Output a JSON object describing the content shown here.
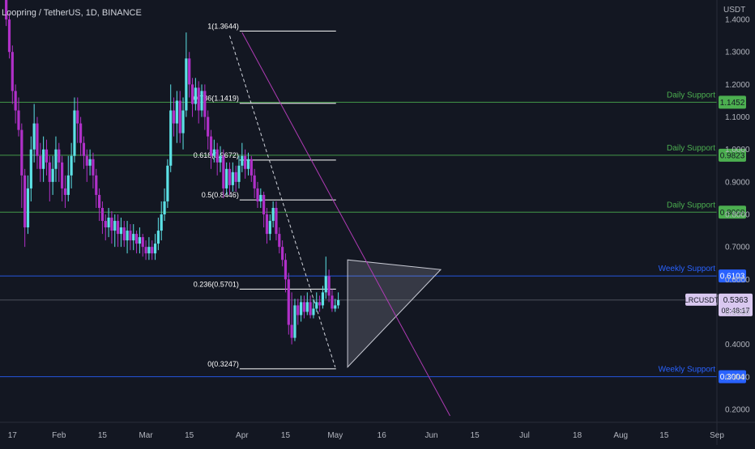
{
  "header": {
    "title": "Loopring / TetherUS, 1D, BINANCE"
  },
  "colors": {
    "background": "#131722",
    "bull": "#5ce1e6",
    "bear": "#b030c8",
    "daily_support": "#4caf50",
    "weekly_support": "#2962ff",
    "text": "#b2b5be",
    "fib": "#ffffff",
    "trendline": "#b03bb5"
  },
  "chart_data": {
    "type": "candlestick",
    "title": "Loopring / TetherUS, 1D, BINANCE",
    "symbol": "LRCUSDT",
    "price_axis_unit": "USDT",
    "y_ticks": [
      "0.2000",
      "0.3000",
      "0.4000",
      "0.5000",
      "0.6000",
      "0.7000",
      "0.8000",
      "0.9000",
      "1.0000",
      "1.1000",
      "1.2000",
      "1.3000",
      "1.4000"
    ],
    "ylim": [
      0.16,
      1.46
    ],
    "x_labels": [
      {
        "label": "17",
        "day": -45
      },
      {
        "label": "Feb",
        "day": -30
      },
      {
        "label": "15",
        "day": -16
      },
      {
        "label": "Mar",
        "day": -2
      },
      {
        "label": "15",
        "day": 12
      },
      {
        "label": "Apr",
        "day": 29
      },
      {
        "label": "15",
        "day": 43
      },
      {
        "label": "May",
        "day": 59
      },
      {
        "label": "16",
        "day": 74
      },
      {
        "label": "Jun",
        "day": 90
      },
      {
        "label": "15",
        "day": 104
      },
      {
        "label": "Jul",
        "day": 120
      },
      {
        "label": "18",
        "day": 137
      },
      {
        "label": "Aug",
        "day": 151
      },
      {
        "label": "15",
        "day": 165
      },
      {
        "label": "Sep",
        "day": 182
      }
    ],
    "xlim": [
      -49,
      182
    ],
    "candles": [
      [
        1.46,
        1.4,
        1.48,
        1.38
      ],
      [
        1.4,
        1.3,
        1.42,
        1.28
      ],
      [
        1.3,
        1.18,
        1.32,
        1.14
      ],
      [
        1.18,
        1.12,
        1.2,
        1.08
      ],
      [
        1.12,
        1.06,
        1.16,
        1.04
      ],
      [
        1.06,
        0.92,
        1.08,
        0.82
      ],
      [
        0.92,
        0.76,
        0.94,
        0.7
      ],
      [
        0.76,
        0.88,
        0.92,
        0.74
      ],
      [
        0.88,
        1.0,
        1.04,
        0.84
      ],
      [
        1.0,
        1.08,
        1.14,
        0.96
      ],
      [
        1.08,
        0.98,
        1.1,
        0.94
      ],
      [
        0.98,
        0.94,
        1.02,
        0.9
      ],
      [
        0.94,
        1.0,
        1.04,
        0.9
      ],
      [
        1.0,
        0.96,
        1.03,
        0.92
      ],
      [
        0.96,
        0.9,
        0.98,
        0.84
      ],
      [
        0.9,
        0.94,
        0.98,
        0.86
      ],
      [
        0.94,
        1.0,
        1.04,
        0.9
      ],
      [
        1.0,
        0.96,
        1.02,
        0.9
      ],
      [
        0.96,
        0.88,
        0.98,
        0.84
      ],
      [
        0.88,
        0.86,
        0.92,
        0.82
      ],
      [
        0.86,
        0.92,
        0.98,
        0.84
      ],
      [
        0.92,
        0.98,
        1.02,
        0.88
      ],
      [
        0.98,
        1.12,
        1.16,
        0.96
      ],
      [
        1.12,
        1.08,
        1.16,
        1.02
      ],
      [
        1.08,
        1.02,
        1.1,
        0.98
      ],
      [
        1.02,
        0.98,
        1.04,
        0.94
      ],
      [
        0.98,
        0.95,
        1.0,
        0.9
      ],
      [
        0.95,
        0.97,
        1.0,
        0.92
      ],
      [
        0.97,
        0.92,
        0.99,
        0.88
      ],
      [
        0.92,
        0.86,
        0.94,
        0.82
      ],
      [
        0.86,
        0.82,
        0.88,
        0.78
      ],
      [
        0.82,
        0.78,
        0.84,
        0.74
      ],
      [
        0.78,
        0.76,
        0.8,
        0.72
      ],
      [
        0.76,
        0.79,
        0.82,
        0.73
      ],
      [
        0.79,
        0.75,
        0.81,
        0.71
      ],
      [
        0.75,
        0.78,
        0.8,
        0.7
      ],
      [
        0.78,
        0.74,
        0.8,
        0.7
      ],
      [
        0.74,
        0.76,
        0.79,
        0.7
      ],
      [
        0.76,
        0.72,
        0.78,
        0.7
      ],
      [
        0.72,
        0.75,
        0.78,
        0.68
      ],
      [
        0.75,
        0.72,
        0.77,
        0.69
      ],
      [
        0.72,
        0.74,
        0.77,
        0.69
      ],
      [
        0.74,
        0.71,
        0.75,
        0.68
      ],
      [
        0.71,
        0.73,
        0.76,
        0.68
      ],
      [
        0.73,
        0.7,
        0.74,
        0.67
      ],
      [
        0.7,
        0.68,
        0.72,
        0.66
      ],
      [
        0.68,
        0.7,
        0.73,
        0.66
      ],
      [
        0.7,
        0.68,
        0.72,
        0.66
      ],
      [
        0.68,
        0.71,
        0.74,
        0.66
      ],
      [
        0.71,
        0.75,
        0.79,
        0.69
      ],
      [
        0.75,
        0.8,
        0.84,
        0.72
      ],
      [
        0.8,
        0.84,
        0.88,
        0.78
      ],
      [
        0.84,
        0.95,
        0.97,
        0.82
      ],
      [
        0.95,
        1.12,
        1.2,
        0.93
      ],
      [
        1.12,
        1.08,
        1.16,
        1.04
      ],
      [
        1.08,
        1.15,
        1.18,
        1.02
      ],
      [
        1.15,
        1.05,
        1.18,
        1.02
      ],
      [
        1.05,
        1.12,
        1.16,
        1.0
      ],
      [
        1.12,
        1.28,
        1.36,
        1.1
      ],
      [
        1.28,
        1.2,
        1.3,
        1.16
      ],
      [
        1.2,
        1.14,
        1.22,
        1.1
      ],
      [
        1.14,
        1.19,
        1.22,
        1.12
      ],
      [
        1.19,
        1.12,
        1.21,
        1.08
      ],
      [
        1.12,
        1.18,
        1.2,
        1.1
      ],
      [
        1.18,
        1.1,
        1.2,
        1.06
      ],
      [
        1.1,
        1.04,
        1.12,
        1.0
      ],
      [
        1.04,
        0.98,
        1.06,
        0.94
      ],
      [
        0.98,
        1.0,
        1.03,
        0.96
      ],
      [
        1.0,
        0.96,
        1.02,
        0.92
      ],
      [
        0.96,
        0.98,
        1.01,
        0.93
      ],
      [
        0.98,
        0.88,
        1.0,
        0.85
      ],
      [
        0.88,
        0.94,
        0.96,
        0.86
      ],
      [
        0.94,
        0.89,
        0.96,
        0.86
      ],
      [
        0.89,
        0.93,
        0.96,
        0.87
      ],
      [
        0.93,
        0.9,
        0.95,
        0.87
      ],
      [
        0.9,
        0.95,
        0.98,
        0.88
      ],
      [
        0.95,
        0.98,
        1.02,
        0.93
      ],
      [
        0.98,
        0.94,
        1.0,
        0.91
      ],
      [
        0.94,
        0.97,
        0.99,
        0.92
      ],
      [
        0.97,
        0.92,
        0.98,
        0.9
      ],
      [
        0.92,
        0.88,
        0.94,
        0.85
      ],
      [
        0.88,
        0.84,
        0.9,
        0.82
      ],
      [
        0.84,
        0.86,
        0.88,
        0.82
      ],
      [
        0.86,
        0.8,
        0.87,
        0.76
      ],
      [
        0.8,
        0.74,
        0.82,
        0.71
      ],
      [
        0.74,
        0.78,
        0.8,
        0.72
      ],
      [
        0.78,
        0.82,
        0.84,
        0.76
      ],
      [
        0.82,
        0.74,
        0.84,
        0.72
      ],
      [
        0.74,
        0.7,
        0.76,
        0.68
      ],
      [
        0.7,
        0.66,
        0.72,
        0.64
      ],
      [
        0.66,
        0.6,
        0.68,
        0.56
      ],
      [
        0.6,
        0.46,
        0.62,
        0.43
      ],
      [
        0.46,
        0.42,
        0.56,
        0.4
      ],
      [
        0.42,
        0.52,
        0.54,
        0.41
      ],
      [
        0.52,
        0.49,
        0.54,
        0.46
      ],
      [
        0.49,
        0.53,
        0.55,
        0.47
      ],
      [
        0.53,
        0.5,
        0.55,
        0.48
      ],
      [
        0.5,
        0.53,
        0.56,
        0.49
      ],
      [
        0.53,
        0.49,
        0.55,
        0.48
      ],
      [
        0.49,
        0.51,
        0.54,
        0.48
      ],
      [
        0.51,
        0.53,
        0.56,
        0.5
      ],
      [
        0.53,
        0.52,
        0.55,
        0.5
      ],
      [
        0.52,
        0.56,
        0.58,
        0.51
      ],
      [
        0.56,
        0.61,
        0.67,
        0.54
      ],
      [
        0.61,
        0.55,
        0.63,
        0.53
      ],
      [
        0.55,
        0.51,
        0.57,
        0.5
      ],
      [
        0.51,
        0.52,
        0.54,
        0.5
      ],
      [
        0.52,
        0.5363,
        0.56,
        0.51
      ]
    ],
    "fibonacci": {
      "levels": [
        {
          "label": "1(1.3644)",
          "value": 1.3644
        },
        {
          "label": "0.786(1.1419)",
          "value": 1.1419
        },
        {
          "label": "0.618(0.9672)",
          "value": 0.9672
        },
        {
          "label": "0.5(0.8446)",
          "value": 0.8446
        },
        {
          "label": "0.236(0.5701)",
          "value": 0.5701
        },
        {
          "label": "0(0.3247)",
          "value": 0.3247
        }
      ],
      "start_day": 29,
      "end_day": 59
    },
    "horizontal_levels": [
      {
        "name": "Daily Support",
        "value": 1.1452,
        "label": "1.1452",
        "kind": "daily"
      },
      {
        "name": "Daily Support",
        "value": 0.9823,
        "label": "0.9823",
        "kind": "daily"
      },
      {
        "name": "Daily Support",
        "value": 0.8068,
        "label": "0.8068",
        "kind": "daily"
      },
      {
        "name": "Weekly Support",
        "value": 0.6103,
        "label": "0.6103",
        "kind": "weekly"
      },
      {
        "name": "Weekly Support",
        "value": 0.3004,
        "label": "0.3004",
        "kind": "weekly"
      }
    ],
    "triangle": {
      "points": [
        [
          63,
          0.66
        ],
        [
          63,
          0.33
        ],
        [
          93,
          0.63
        ]
      ]
    },
    "trendlines": [
      {
        "from": [
          29,
          1.36
        ],
        "to": [
          96,
          0.18
        ],
        "style": "solid"
      },
      {
        "from": [
          25,
          1.35
        ],
        "to": [
          59,
          0.33
        ],
        "style": "dashed"
      }
    ],
    "last_price": {
      "symbol": "LRCUSDT",
      "price": "0.5363",
      "countdown": "08:48:17"
    }
  }
}
